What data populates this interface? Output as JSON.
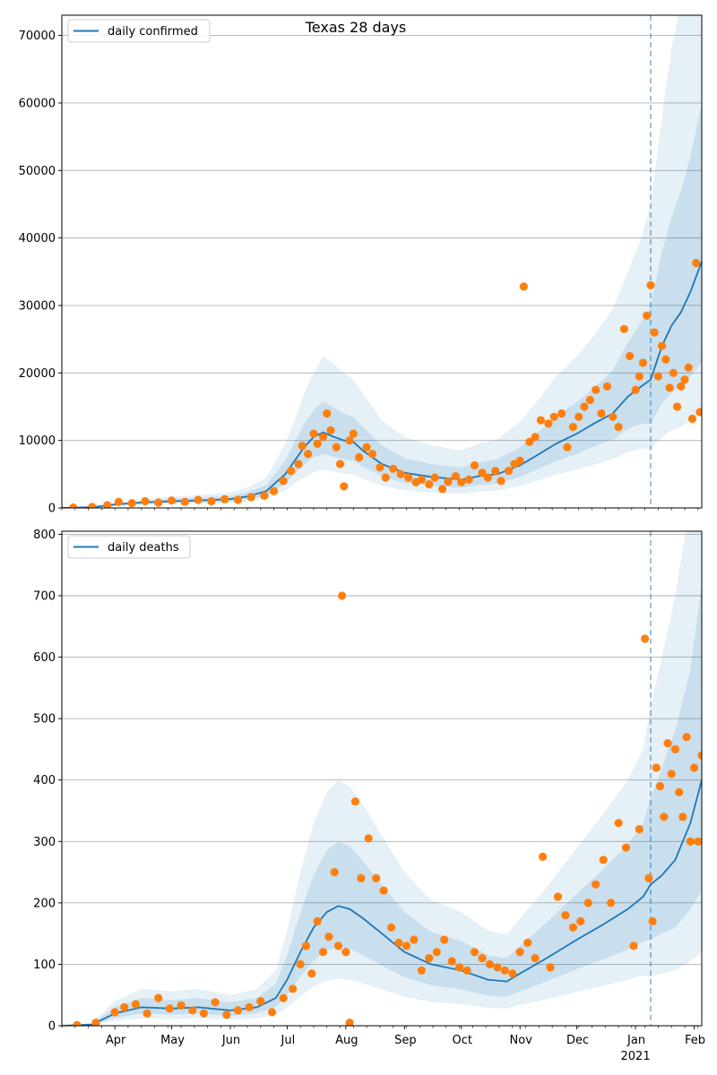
{
  "colors": {
    "line": "#1f77b4",
    "points": "#ff7f0e",
    "band": "#1f77b4",
    "grid": "#b0b0b0",
    "vline": "#1f77b4"
  },
  "chart_data": [
    {
      "type": "line",
      "title": "Texas 28 days",
      "legend": "daily confirmed",
      "legend_position": "top-left",
      "ylim": [
        0,
        73000
      ],
      "yticks": [
        0,
        10000,
        20000,
        30000,
        40000,
        50000,
        60000,
        70000
      ],
      "grid": "horizontal",
      "x_start": "2020-03-04",
      "x_end": "2021-02-05",
      "forecast_start": "2021-01-09",
      "series": [
        {
          "name": "daily confirmed",
          "x": [
            "2020-03-04",
            "2020-03-20",
            "2020-04-01",
            "2020-04-15",
            "2020-05-01",
            "2020-05-15",
            "2020-06-01",
            "2020-06-10",
            "2020-06-20",
            "2020-06-30",
            "2020-07-05",
            "2020-07-10",
            "2020-07-15",
            "2020-07-20",
            "2020-07-25",
            "2020-07-31",
            "2020-08-05",
            "2020-08-10",
            "2020-08-20",
            "2020-09-01",
            "2020-09-15",
            "2020-10-01",
            "2020-10-10",
            "2020-10-20",
            "2020-11-01",
            "2020-11-10",
            "2020-11-20",
            "2020-12-01",
            "2020-12-10",
            "2020-12-20",
            "2020-12-28",
            "2021-01-04",
            "2021-01-09",
            "2021-01-15",
            "2021-01-20",
            "2021-01-25",
            "2021-01-30",
            "2021-02-05"
          ],
          "values": [
            0,
            100,
            500,
            800,
            1000,
            1100,
            1300,
            1700,
            2500,
            5000,
            7000,
            9000,
            10500,
            11200,
            10600,
            10000,
            9800,
            8500,
            6500,
            5200,
            4600,
            4200,
            4700,
            5000,
            6300,
            7800,
            9500,
            11000,
            12500,
            14000,
            16500,
            18000,
            19000,
            24000,
            27000,
            29000,
            32000,
            36500
          ]
        }
      ],
      "band_inner_upper": [
        0,
        120,
        650,
        1050,
        1350,
        1500,
        1800,
        2300,
        3400,
        7000,
        9800,
        12500,
        14500,
        15800,
        15000,
        14000,
        13500,
        12000,
        9300,
        7400,
        6500,
        6000,
        6700,
        7200,
        9000,
        11100,
        13600,
        15700,
        17800,
        20400,
        24500,
        27500,
        30000,
        38000,
        43000,
        47000,
        52000,
        60000
      ],
      "band_inner_lower": [
        0,
        80,
        380,
        600,
        750,
        820,
        950,
        1250,
        1800,
        3600,
        5000,
        6400,
        7500,
        8000,
        7600,
        7200,
        7000,
        6100,
        4700,
        3700,
        3300,
        3000,
        3400,
        3600,
        4600,
        5700,
        6900,
        8000,
        9100,
        10100,
        11700,
        12500,
        12500,
        15500,
        17000,
        18000,
        19500,
        21500
      ],
      "band_outer_upper": [
        0,
        150,
        800,
        1300,
        1700,
        1900,
        2300,
        3000,
        4500,
        9500,
        13000,
        17000,
        20000,
        22500,
        21500,
        20000,
        19000,
        17000,
        13000,
        10500,
        9300,
        8500,
        9500,
        10200,
        12800,
        15800,
        19500,
        22500,
        25500,
        29500,
        35000,
        40000,
        45000,
        58000,
        68000,
        75000,
        80000,
        80000
      ],
      "band_outer_lower": [
        0,
        60,
        280,
        430,
        550,
        600,
        700,
        900,
        1300,
        2600,
        3600,
        4500,
        5300,
        5700,
        5400,
        5100,
        5000,
        4300,
        3300,
        2600,
        2300,
        2100,
        2400,
        2550,
        3250,
        4000,
        4900,
        5700,
        6400,
        7200,
        8300,
        8800,
        8700,
        10500,
        11500,
        12000,
        13000,
        14000
      ],
      "points": {
        "x": [
          "2020-03-10",
          "2020-03-20",
          "2020-03-28",
          "2020-04-03",
          "2020-04-10",
          "2020-04-17",
          "2020-04-24",
          "2020-05-01",
          "2020-05-08",
          "2020-05-15",
          "2020-05-22",
          "2020-05-29",
          "2020-06-05",
          "2020-06-12",
          "2020-06-19",
          "2020-06-24",
          "2020-06-29",
          "2020-07-03",
          "2020-07-07",
          "2020-07-09",
          "2020-07-12",
          "2020-07-15",
          "2020-07-17",
          "2020-07-20",
          "2020-07-22",
          "2020-07-24",
          "2020-07-27",
          "2020-07-29",
          "2020-07-31",
          "2020-08-03",
          "2020-08-05",
          "2020-08-08",
          "2020-08-12",
          "2020-08-15",
          "2020-08-19",
          "2020-08-22",
          "2020-08-26",
          "2020-08-30",
          "2020-09-03",
          "2020-09-07",
          "2020-09-10",
          "2020-09-14",
          "2020-09-17",
          "2020-09-21",
          "2020-09-24",
          "2020-09-28",
          "2020-10-01",
          "2020-10-05",
          "2020-10-08",
          "2020-10-12",
          "2020-10-15",
          "2020-10-19",
          "2020-10-22",
          "2020-10-26",
          "2020-10-29",
          "2020-11-01",
          "2020-11-03",
          "2020-11-06",
          "2020-11-09",
          "2020-11-12",
          "2020-11-16",
          "2020-11-19",
          "2020-11-23",
          "2020-11-26",
          "2020-11-29",
          "2020-12-02",
          "2020-12-05",
          "2020-12-08",
          "2020-12-11",
          "2020-12-14",
          "2020-12-17",
          "2020-12-20",
          "2020-12-23",
          "2020-12-26",
          "2020-12-29",
          "2021-01-01",
          "2021-01-03",
          "2021-01-05",
          "2021-01-07",
          "2021-01-09",
          "2021-01-11",
          "2021-01-13",
          "2021-01-15",
          "2021-01-17",
          "2021-01-19",
          "2021-01-21",
          "2021-01-23",
          "2021-01-25",
          "2021-01-27",
          "2021-01-29",
          "2021-01-31",
          "2021-02-02",
          "2021-02-04"
        ],
        "values": [
          50,
          150,
          400,
          900,
          700,
          1000,
          800,
          1100,
          900,
          1200,
          1000,
          1300,
          1200,
          1600,
          1800,
          2500,
          4000,
          5500,
          6500,
          9200,
          8000,
          11000,
          9500,
          10500,
          14000,
          11500,
          9000,
          6500,
          3200,
          10000,
          11000,
          7500,
          9000,
          8000,
          6000,
          4500,
          5800,
          5000,
          4500,
          3800,
          4200,
          3500,
          4500,
          2800,
          3900,
          4700,
          3800,
          4200,
          6300,
          5200,
          4500,
          5500,
          4000,
          5500,
          6500,
          7000,
          32800,
          9800,
          10500,
          13000,
          12500,
          13500,
          14000,
          9000,
          12000,
          13500,
          15000,
          16000,
          17500,
          14000,
          18000,
          13500,
          12000,
          26500,
          22500,
          17500,
          19500,
          21500,
          28500,
          33000,
          26000,
          19500,
          24000,
          22000,
          17800,
          20000,
          15000,
          18000,
          19000,
          20800,
          13200,
          36300,
          14200
        ]
      }
    },
    {
      "type": "line",
      "legend": "daily deaths",
      "legend_position": "top-left",
      "ylim": [
        0,
        805
      ],
      "yticks": [
        0,
        100,
        200,
        300,
        400,
        500,
        600,
        700,
        800
      ],
      "grid": "horizontal",
      "x_start": "2020-03-04",
      "x_end": "2021-02-05",
      "forecast_start": "2021-01-09",
      "xtick_labels": [
        {
          "date": "2020-04-01",
          "label": "Apr"
        },
        {
          "date": "2020-05-01",
          "label": "May"
        },
        {
          "date": "2020-06-01",
          "label": "Jun"
        },
        {
          "date": "2020-07-01",
          "label": "Jul"
        },
        {
          "date": "2020-08-01",
          "label": "Aug"
        },
        {
          "date": "2020-09-01",
          "label": "Sep"
        },
        {
          "date": "2020-10-01",
          "label": "Oct"
        },
        {
          "date": "2020-11-01",
          "label": "Nov"
        },
        {
          "date": "2020-12-01",
          "label": "Dec"
        },
        {
          "date": "2021-01-01",
          "label": "Jan"
        },
        {
          "date": "2021-02-01",
          "label": "Feb"
        }
      ],
      "year_label": {
        "date": "2021-01-01",
        "label": "2021"
      },
      "series": [
        {
          "name": "daily deaths",
          "x": [
            "2020-03-04",
            "2020-03-20",
            "2020-04-01",
            "2020-04-15",
            "2020-05-01",
            "2020-05-15",
            "2020-06-01",
            "2020-06-15",
            "2020-06-25",
            "2020-07-01",
            "2020-07-08",
            "2020-07-15",
            "2020-07-22",
            "2020-07-28",
            "2020-08-03",
            "2020-08-10",
            "2020-08-20",
            "2020-09-01",
            "2020-09-15",
            "2020-10-01",
            "2020-10-15",
            "2020-10-25",
            "2020-11-01",
            "2020-11-15",
            "2020-12-01",
            "2020-12-15",
            "2020-12-28",
            "2021-01-05",
            "2021-01-09",
            "2021-01-15",
            "2021-01-22",
            "2021-01-30",
            "2021-02-05"
          ],
          "values": [
            0,
            2,
            20,
            30,
            28,
            30,
            25,
            30,
            45,
            75,
            120,
            160,
            185,
            195,
            190,
            175,
            150,
            120,
            100,
            90,
            75,
            72,
            85,
            110,
            140,
            165,
            190,
            210,
            230,
            245,
            270,
            330,
            400
          ]
        }
      ],
      "band_inner_upper": [
        0,
        3,
        30,
        45,
        42,
        45,
        38,
        45,
        68,
        115,
        185,
        245,
        285,
        300,
        292,
        268,
        230,
        185,
        153,
        138,
        115,
        110,
        130,
        168,
        215,
        255,
        295,
        330,
        370,
        420,
        480,
        580,
        720
      ],
      "band_inner_lower": [
        0,
        1,
        13,
        20,
        18,
        20,
        16,
        20,
        30,
        50,
        80,
        106,
        122,
        128,
        125,
        115,
        98,
        79,
        66,
        59,
        49,
        47,
        56,
        72,
        92,
        108,
        124,
        137,
        140,
        150,
        160,
        190,
        220
      ],
      "band_outer_upper": [
        0,
        5,
        40,
        60,
        56,
        60,
        50,
        60,
        90,
        155,
        250,
        330,
        380,
        400,
        390,
        360,
        310,
        250,
        205,
        185,
        155,
        148,
        175,
        225,
        290,
        345,
        400,
        450,
        520,
        600,
        700,
        850,
        900
      ],
      "band_outer_lower": [
        0,
        1,
        8,
        12,
        11,
        12,
        10,
        12,
        18,
        30,
        48,
        64,
        73,
        77,
        75,
        69,
        59,
        47,
        39,
        35,
        29,
        28,
        34,
        43,
        55,
        65,
        75,
        82,
        80,
        85,
        90,
        105,
        120
      ],
      "points": {
        "x": [
          "2020-03-12",
          "2020-03-22",
          "2020-04-01",
          "2020-04-06",
          "2020-04-12",
          "2020-04-18",
          "2020-04-24",
          "2020-04-30",
          "2020-05-06",
          "2020-05-12",
          "2020-05-18",
          "2020-05-24",
          "2020-05-30",
          "2020-06-05",
          "2020-06-11",
          "2020-06-17",
          "2020-06-23",
          "2020-06-29",
          "2020-07-04",
          "2020-07-08",
          "2020-07-11",
          "2020-07-14",
          "2020-07-17",
          "2020-07-20",
          "2020-07-23",
          "2020-07-26",
          "2020-07-28",
          "2020-07-30",
          "2020-08-01",
          "2020-08-03",
          "2020-08-06",
          "2020-08-09",
          "2020-08-13",
          "2020-08-17",
          "2020-08-21",
          "2020-08-25",
          "2020-08-29",
          "2020-09-02",
          "2020-09-06",
          "2020-09-10",
          "2020-09-14",
          "2020-09-18",
          "2020-09-22",
          "2020-09-26",
          "2020-09-30",
          "2020-10-04",
          "2020-10-08",
          "2020-10-12",
          "2020-10-16",
          "2020-10-20",
          "2020-10-24",
          "2020-10-28",
          "2020-11-01",
          "2020-11-05",
          "2020-11-09",
          "2020-11-13",
          "2020-11-17",
          "2020-11-21",
          "2020-11-25",
          "2020-11-29",
          "2020-12-03",
          "2020-12-07",
          "2020-12-11",
          "2020-12-15",
          "2020-12-19",
          "2020-12-23",
          "2020-12-27",
          "2020-12-31",
          "2021-01-03",
          "2021-01-06",
          "2021-01-08",
          "2021-01-10",
          "2021-01-12",
          "2021-01-14",
          "2021-01-16",
          "2021-01-18",
          "2021-01-20",
          "2021-01-22",
          "2021-01-24",
          "2021-01-26",
          "2021-01-28",
          "2021-01-30",
          "2021-02-01",
          "2021-02-03",
          "2021-02-05"
        ],
        "values": [
          1,
          5,
          22,
          30,
          35,
          20,
          45,
          28,
          33,
          25,
          20,
          38,
          18,
          25,
          30,
          40,
          22,
          45,
          60,
          100,
          130,
          85,
          170,
          120,
          145,
          250,
          130,
          700,
          120,
          5,
          365,
          240,
          305,
          240,
          220,
          160,
          135,
          130,
          140,
          90,
          110,
          120,
          140,
          105,
          95,
          90,
          120,
          110,
          100,
          95,
          90,
          85,
          120,
          135,
          110,
          275,
          95,
          210,
          180,
          160,
          170,
          200,
          230,
          270,
          200,
          330,
          290,
          130,
          320,
          630,
          240,
          170,
          420,
          390,
          340,
          460,
          410,
          450,
          380,
          340,
          470,
          300,
          420,
          300,
          440
        ]
      }
    }
  ]
}
